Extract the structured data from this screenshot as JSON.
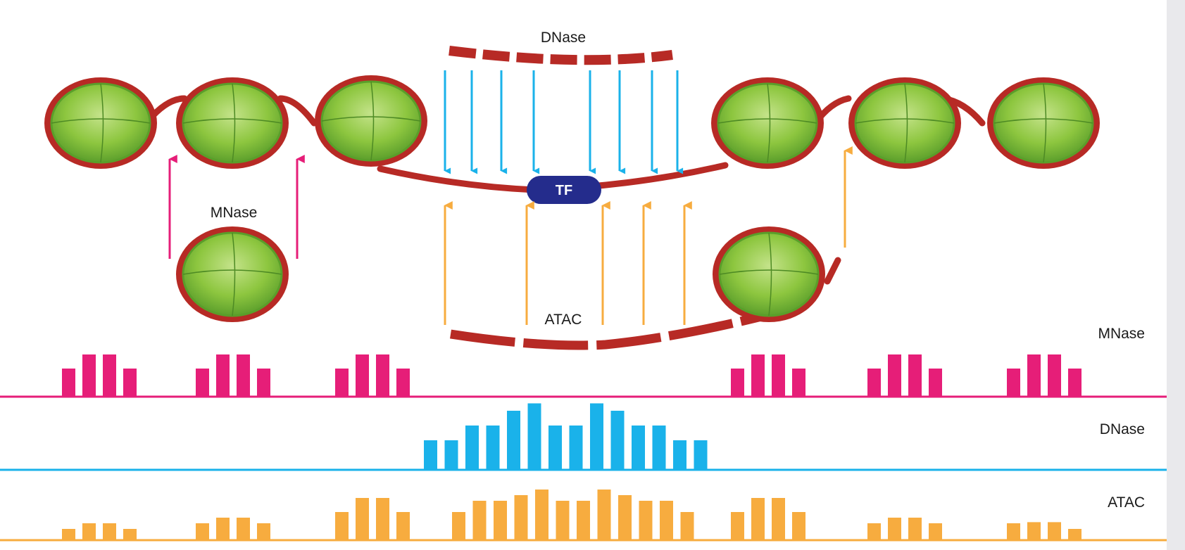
{
  "labels": {
    "dnase_top": "DNase",
    "mnase_mid": "MNase",
    "atac_mid": "ATAC",
    "tf": "TF",
    "track_mnase": "MNase",
    "track_dnase": "DNase",
    "track_atac": "ATAC"
  },
  "colors": {
    "mnase": "#e61e78",
    "dnase": "#1ab2ea",
    "atac": "#f7ac3f",
    "dna": "#b72a25",
    "tf": "#242c8c",
    "nucleosome_fill": "#8dc63f",
    "nucleosome_core": "#5a9e2a"
  },
  "tracks": {
    "mnase": [
      4,
      6,
      6,
      4,
      0,
      4,
      6,
      6,
      4,
      0,
      4,
      6,
      6,
      4,
      0,
      4,
      6,
      6,
      4,
      0,
      4,
      6,
      6,
      4,
      0,
      4,
      6,
      6,
      4
    ],
    "dnase": [
      4,
      4,
      6,
      6,
      8,
      9,
      6,
      6,
      9,
      8,
      6,
      6,
      4,
      4
    ],
    "atac": [
      2,
      3,
      3,
      2,
      0,
      3,
      4,
      4,
      3,
      0,
      5,
      8,
      8,
      5,
      0,
      5,
      7,
      7,
      8,
      9,
      7,
      7,
      9,
      8,
      7,
      7,
      5,
      0,
      5,
      8,
      8,
      5,
      0,
      3,
      4,
      4,
      3,
      0,
      3,
      3,
      3,
      2
    ]
  }
}
